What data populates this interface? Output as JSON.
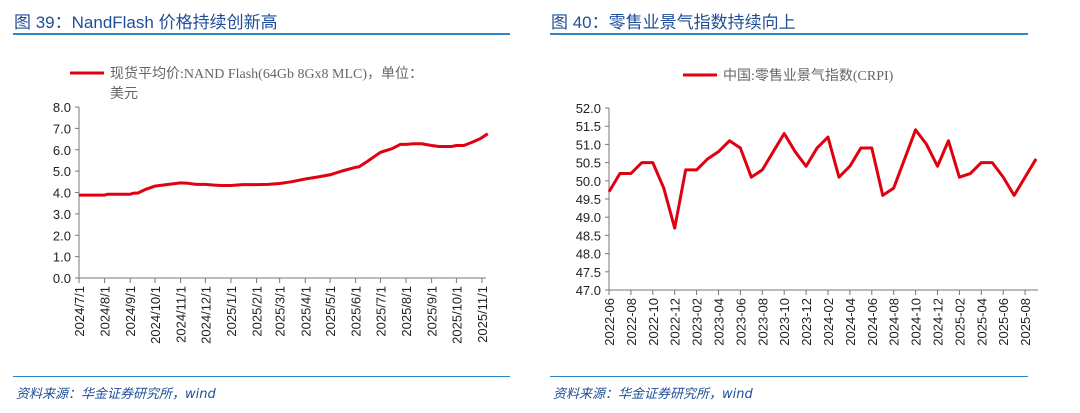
{
  "left": {
    "title": "图 39：NandFlash 价格持续创新高",
    "source": "资料来源：华金证券研究所，wind"
  },
  "right": {
    "title": "图 40：零售业景气指数持续向上",
    "source": "资料来源：华金证券研究所，wind"
  },
  "colors": {
    "line": "#e00010",
    "title": "#1f4e99",
    "rule": "#2f86c6"
  },
  "chart_data": [
    {
      "type": "line",
      "legend_position": "top",
      "grid": false,
      "series": [
        {
          "name": "现货平均价:NAND Flash(64Gb 8Gx8 MLC)，单位：美元",
          "x": [
            "2024-07-01",
            "2024-07-15",
            "2024-08-01",
            "2024-08-05",
            "2024-08-15",
            "2024-09-01",
            "2024-09-05",
            "2024-09-10",
            "2024-09-20",
            "2024-10-01",
            "2024-10-15",
            "2024-11-01",
            "2024-11-10",
            "2024-11-20",
            "2024-12-01",
            "2024-12-10",
            "2024-12-20",
            "2025-01-01",
            "2025-01-15",
            "2025-02-01",
            "2025-02-15",
            "2025-03-01",
            "2025-03-15",
            "2025-04-01",
            "2025-04-15",
            "2025-05-01",
            "2025-05-15",
            "2025-06-01",
            "2025-06-05",
            "2025-06-15",
            "2025-07-01",
            "2025-07-15",
            "2025-07-25",
            "2025-08-01",
            "2025-08-10",
            "2025-08-20",
            "2025-09-01",
            "2025-09-10",
            "2025-09-25",
            "2025-10-01",
            "2025-10-10",
            "2025-10-20",
            "2025-10-30",
            "2025-11-08"
          ],
          "y": [
            3.88,
            3.88,
            3.88,
            3.92,
            3.92,
            3.92,
            3.97,
            3.97,
            4.15,
            4.3,
            4.37,
            4.45,
            4.43,
            4.38,
            4.38,
            4.35,
            4.33,
            4.33,
            4.37,
            4.37,
            4.38,
            4.42,
            4.5,
            4.63,
            4.72,
            4.83,
            5.0,
            5.18,
            5.2,
            5.45,
            5.88,
            6.05,
            6.25,
            6.25,
            6.28,
            6.28,
            6.2,
            6.15,
            6.15,
            6.2,
            6.2,
            6.35,
            6.52,
            6.75
          ]
        }
      ],
      "ylim": [
        0,
        8
      ],
      "yticks": [
        "0.0",
        "1.0",
        "2.0",
        "3.0",
        "4.0",
        "5.0",
        "6.0",
        "7.0",
        "8.0"
      ],
      "xticks": [
        "2024/7/1",
        "2024/8/1",
        "2024/9/1",
        "2024/10/1",
        "2024/11/1",
        "2024/12/1",
        "2025/1/1",
        "2025/2/1",
        "2025/3/1",
        "2025/4/1",
        "2025/5/1",
        "2025/6/1",
        "2025/7/1",
        "2025/8/1",
        "2025/9/1",
        "2025/10/1",
        "2025/11/1"
      ]
    },
    {
      "type": "line",
      "legend_position": "top",
      "grid": false,
      "series": [
        {
          "name": "中国:零售业景气指数(CRPI)",
          "x": [
            "2022-06",
            "2022-07",
            "2022-08",
            "2022-09",
            "2022-10",
            "2022-11",
            "2022-12",
            "2023-01",
            "2023-02",
            "2023-03",
            "2023-04",
            "2023-05",
            "2023-06",
            "2023-07",
            "2023-08",
            "2023-09",
            "2023-10",
            "2023-11",
            "2023-12",
            "2024-01",
            "2024-02",
            "2024-03",
            "2024-04",
            "2024-05",
            "2024-06",
            "2024-07",
            "2024-08",
            "2024-09",
            "2024-10",
            "2024-11",
            "2024-12",
            "2025-01",
            "2025-02",
            "2025-03",
            "2025-04",
            "2025-05",
            "2025-06",
            "2025-07",
            "2025-08",
            "2025-09"
          ],
          "y": [
            49.7,
            50.2,
            50.2,
            50.5,
            50.5,
            49.8,
            48.7,
            50.3,
            50.3,
            50.6,
            50.8,
            51.1,
            50.9,
            50.1,
            50.3,
            50.8,
            51.3,
            50.8,
            50.4,
            50.9,
            51.2,
            50.1,
            50.4,
            50.9,
            50.9,
            49.6,
            49.8,
            50.6,
            51.4,
            51.0,
            50.4,
            51.1,
            50.1,
            50.2,
            50.5,
            50.5,
            50.1,
            49.6,
            50.1,
            50.6
          ]
        }
      ],
      "ylim": [
        47,
        52
      ],
      "yticks": [
        "47.0",
        "47.5",
        "48.0",
        "48.5",
        "49.0",
        "49.5",
        "50.0",
        "50.5",
        "51.0",
        "51.5",
        "52.0"
      ],
      "xticks": [
        "2022-06",
        "2022-08",
        "2022-10",
        "2022-12",
        "2023-02",
        "2023-04",
        "2023-06",
        "2023-08",
        "2023-10",
        "2023-12",
        "2024-02",
        "2024-04",
        "2024-06",
        "2024-08",
        "2024-10",
        "2024-12",
        "2025-02",
        "2025-04",
        "2025-06",
        "2025-08"
      ]
    }
  ]
}
